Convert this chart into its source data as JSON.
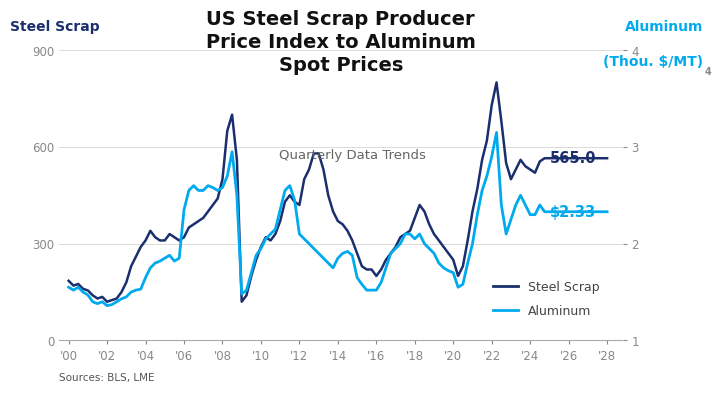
{
  "title": "US Steel Scrap Producer\nPrice Index to Aluminum\nSpot Prices",
  "subtitle": "Quarterly Data Trends",
  "left_axis_label": "Steel Scrap",
  "right_axis_label_line1": "Aluminum",
  "right_axis_label_line2": "(Thou. $/MT)",
  "right_axis_subscript": "4",
  "source": "Sources: BLS, LME",
  "steel_color": "#1b2f6e",
  "alum_color": "#00aaee",
  "steel_label": "Steel Scrap",
  "alum_label": "Aluminum",
  "steel_end_label": "565.0",
  "alum_end_label": "$2.33",
  "left_ylim": [
    0,
    900
  ],
  "right_ylim": [
    1.0,
    4.0
  ],
  "left_yticks": [
    0,
    300,
    600,
    900
  ],
  "right_yticks": [
    1.0,
    2.0,
    3.0,
    4.0
  ],
  "title_fontsize": 14,
  "subtitle_fontsize": 9.5,
  "tick_fontsize": 8.5,
  "bg_color": "#ffffff",
  "steel_data": {
    "years": [
      2000.0,
      2000.25,
      2000.5,
      2000.75,
      2001.0,
      2001.25,
      2001.5,
      2001.75,
      2002.0,
      2002.25,
      2002.5,
      2002.75,
      2003.0,
      2003.25,
      2003.5,
      2003.75,
      2004.0,
      2004.25,
      2004.5,
      2004.75,
      2005.0,
      2005.25,
      2005.5,
      2005.75,
      2006.0,
      2006.25,
      2006.5,
      2006.75,
      2007.0,
      2007.25,
      2007.5,
      2007.75,
      2008.0,
      2008.25,
      2008.5,
      2008.75,
      2009.0,
      2009.25,
      2009.5,
      2009.75,
      2010.0,
      2010.25,
      2010.5,
      2010.75,
      2011.0,
      2011.25,
      2011.5,
      2011.75,
      2012.0,
      2012.25,
      2012.5,
      2012.75,
      2013.0,
      2013.25,
      2013.5,
      2013.75,
      2014.0,
      2014.25,
      2014.5,
      2014.75,
      2015.0,
      2015.25,
      2015.5,
      2015.75,
      2016.0,
      2016.25,
      2016.5,
      2016.75,
      2017.0,
      2017.25,
      2017.5,
      2017.75,
      2018.0,
      2018.25,
      2018.5,
      2018.75,
      2019.0,
      2019.25,
      2019.5,
      2019.75,
      2020.0,
      2020.25,
      2020.5,
      2020.75,
      2021.0,
      2021.25,
      2021.5,
      2021.75,
      2022.0,
      2022.25,
      2022.5,
      2022.75,
      2023.0,
      2023.25,
      2023.5,
      2023.75,
      2024.0,
      2024.25,
      2024.5,
      2024.75,
      2025.0,
      2025.5,
      2026.0,
      2026.5,
      2027.0,
      2027.5,
      2028.0
    ],
    "values": [
      185,
      170,
      175,
      160,
      155,
      140,
      130,
      135,
      120,
      125,
      130,
      150,
      180,
      230,
      260,
      290,
      310,
      340,
      320,
      310,
      310,
      330,
      320,
      310,
      320,
      350,
      360,
      370,
      380,
      400,
      420,
      440,
      500,
      650,
      700,
      560,
      120,
      140,
      200,
      250,
      290,
      320,
      310,
      330,
      370,
      430,
      450,
      430,
      420,
      500,
      530,
      580,
      580,
      530,
      450,
      400,
      370,
      360,
      340,
      310,
      270,
      230,
      220,
      220,
      200,
      220,
      250,
      270,
      290,
      320,
      330,
      340,
      380,
      420,
      400,
      360,
      330,
      310,
      290,
      270,
      250,
      200,
      230,
      310,
      400,
      470,
      560,
      620,
      730,
      800,
      680,
      550,
      500,
      530,
      560,
      540,
      530,
      520,
      555,
      565,
      565,
      565,
      565,
      565,
      565,
      565,
      565
    ]
  },
  "alum_data": {
    "years": [
      2000.0,
      2000.25,
      2000.5,
      2000.75,
      2001.0,
      2001.25,
      2001.5,
      2001.75,
      2002.0,
      2002.25,
      2002.5,
      2002.75,
      2003.0,
      2003.25,
      2003.5,
      2003.75,
      2004.0,
      2004.25,
      2004.5,
      2004.75,
      2005.0,
      2005.25,
      2005.5,
      2005.75,
      2006.0,
      2006.25,
      2006.5,
      2006.75,
      2007.0,
      2007.25,
      2007.5,
      2007.75,
      2008.0,
      2008.25,
      2008.5,
      2008.75,
      2009.0,
      2009.25,
      2009.5,
      2009.75,
      2010.0,
      2010.25,
      2010.5,
      2010.75,
      2011.0,
      2011.25,
      2011.5,
      2011.75,
      2012.0,
      2012.25,
      2012.5,
      2012.75,
      2013.0,
      2013.25,
      2013.5,
      2013.75,
      2014.0,
      2014.25,
      2014.5,
      2014.75,
      2015.0,
      2015.25,
      2015.5,
      2015.75,
      2016.0,
      2016.25,
      2016.5,
      2016.75,
      2017.0,
      2017.25,
      2017.5,
      2017.75,
      2018.0,
      2018.25,
      2018.5,
      2018.75,
      2019.0,
      2019.25,
      2019.5,
      2019.75,
      2020.0,
      2020.25,
      2020.5,
      2020.75,
      2021.0,
      2021.25,
      2021.5,
      2021.75,
      2022.0,
      2022.25,
      2022.5,
      2022.75,
      2023.0,
      2023.25,
      2023.5,
      2023.75,
      2024.0,
      2024.25,
      2024.5,
      2024.75,
      2025.0,
      2025.5,
      2026.0,
      2026.5,
      2027.0,
      2027.5,
      2028.0
    ],
    "values": [
      1.55,
      1.52,
      1.55,
      1.5,
      1.47,
      1.4,
      1.38,
      1.4,
      1.36,
      1.37,
      1.4,
      1.43,
      1.45,
      1.5,
      1.52,
      1.53,
      1.65,
      1.75,
      1.8,
      1.82,
      1.85,
      1.88,
      1.82,
      1.85,
      2.35,
      2.55,
      2.6,
      2.55,
      2.55,
      2.6,
      2.58,
      2.55,
      2.58,
      2.7,
      2.95,
      2.5,
      1.48,
      1.52,
      1.7,
      1.88,
      1.95,
      2.05,
      2.1,
      2.15,
      2.35,
      2.55,
      2.6,
      2.45,
      2.1,
      2.05,
      2.0,
      1.95,
      1.9,
      1.85,
      1.8,
      1.75,
      1.85,
      1.9,
      1.92,
      1.88,
      1.65,
      1.58,
      1.52,
      1.52,
      1.52,
      1.6,
      1.75,
      1.9,
      1.95,
      2.0,
      2.1,
      2.1,
      2.05,
      2.1,
      2.0,
      1.95,
      1.9,
      1.8,
      1.75,
      1.72,
      1.7,
      1.55,
      1.58,
      1.8,
      2.0,
      2.3,
      2.55,
      2.7,
      2.9,
      3.15,
      2.4,
      2.1,
      2.25,
      2.4,
      2.5,
      2.4,
      2.3,
      2.3,
      2.4,
      2.33,
      2.33,
      2.33,
      2.33,
      2.33,
      2.33,
      2.33,
      2.33
    ]
  },
  "xticks": [
    2000,
    2002,
    2004,
    2006,
    2008,
    2010,
    2012,
    2014,
    2016,
    2018,
    2020,
    2022,
    2024,
    2026,
    2028
  ],
  "xticklabels": [
    "'00",
    "'02",
    "'04",
    "'06",
    "'08",
    "'10",
    "'12",
    "'14",
    "'16",
    "'18",
    "'20",
    "'22",
    "'24",
    "'26",
    "'28"
  ],
  "xlim": [
    1999.5,
    2028.8
  ]
}
